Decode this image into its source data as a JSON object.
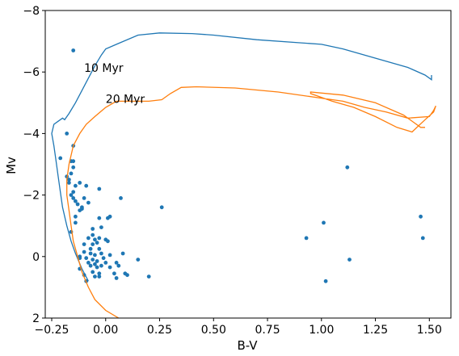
{
  "chart_data": {
    "type": "scatter",
    "title": "",
    "xlabel": "B-V",
    "ylabel": "Mv",
    "xlim": [
      -0.28,
      1.6
    ],
    "ylim": [
      2,
      -8
    ],
    "y_inverted": true,
    "grid": false,
    "xticks": [
      {
        "value": -0.25,
        "label": "−0.25"
      },
      {
        "value": 0.0,
        "label": "0.00"
      },
      {
        "value": 0.25,
        "label": "0.25"
      },
      {
        "value": 0.5,
        "label": "0.50"
      },
      {
        "value": 0.75,
        "label": "0.75"
      },
      {
        "value": 1.0,
        "label": "1.00"
      },
      {
        "value": 1.25,
        "label": "1.25"
      },
      {
        "value": 1.5,
        "label": "1.50"
      }
    ],
    "yticks": [
      {
        "value": -8,
        "label": "−8"
      },
      {
        "value": -6,
        "label": "−6"
      },
      {
        "value": -4,
        "label": "−4"
      },
      {
        "value": -2,
        "label": "−2"
      },
      {
        "value": 0,
        "label": "0"
      },
      {
        "value": 2,
        "label": "2"
      }
    ],
    "series": [
      {
        "kind": "scatter",
        "color": "#1f77b4",
        "points": [
          [
            -0.15,
            -6.7
          ],
          [
            -0.18,
            -4.0
          ],
          [
            -0.21,
            -3.2
          ],
          [
            -0.15,
            -3.6
          ],
          [
            -0.16,
            -3.1
          ],
          [
            -0.15,
            -3.1
          ],
          [
            -0.15,
            -2.9
          ],
          [
            -0.16,
            -2.7
          ],
          [
            -0.18,
            -2.6
          ],
          [
            -0.17,
            -2.5
          ],
          [
            -0.17,
            -2.4
          ],
          [
            -0.12,
            -2.4
          ],
          [
            -0.14,
            -2.3
          ],
          [
            -0.09,
            -2.3
          ],
          [
            -0.03,
            -2.2
          ],
          [
            -0.15,
            -2.1
          ],
          [
            -0.16,
            -2.0
          ],
          [
            -0.15,
            -1.9
          ],
          [
            -0.14,
            -1.8
          ],
          [
            -0.1,
            -1.9
          ],
          [
            0.07,
            -1.9
          ],
          [
            -0.08,
            -1.75
          ],
          [
            -0.13,
            -1.7
          ],
          [
            -0.11,
            -1.6
          ],
          [
            -0.11,
            -1.55
          ],
          [
            -0.12,
            -1.5
          ],
          [
            0.26,
            -1.6
          ],
          [
            -0.14,
            -1.3
          ],
          [
            0.02,
            -1.3
          ],
          [
            0.01,
            -1.25
          ],
          [
            -0.03,
            -1.25
          ],
          [
            -0.14,
            -1.1
          ],
          [
            -0.06,
            -0.9
          ],
          [
            -0.02,
            -0.95
          ],
          [
            -0.16,
            -0.8
          ],
          [
            -0.06,
            -0.7
          ],
          [
            -0.08,
            -0.6
          ],
          [
            -0.05,
            -0.55
          ],
          [
            -0.03,
            -0.6
          ],
          [
            0.0,
            -0.55
          ],
          [
            -0.04,
            -0.45
          ],
          [
            -0.06,
            -0.4
          ],
          [
            -0.1,
            -0.4
          ],
          [
            0.01,
            -0.5
          ],
          [
            -0.07,
            -0.25
          ],
          [
            -0.03,
            -0.25
          ],
          [
            -0.1,
            -0.15
          ],
          [
            -0.07,
            -0.1
          ],
          [
            -0.05,
            -0.05
          ],
          [
            -0.02,
            -0.1
          ],
          [
            0.02,
            -0.05
          ],
          [
            -0.12,
            0.0
          ],
          [
            -0.09,
            0.05
          ],
          [
            -0.06,
            0.1
          ],
          [
            -0.04,
            0.15
          ],
          [
            -0.01,
            0.05
          ],
          [
            -0.08,
            0.2
          ],
          [
            -0.05,
            0.25
          ],
          [
            0.0,
            0.2
          ],
          [
            0.05,
            0.2
          ],
          [
            -0.07,
            0.3
          ],
          [
            -0.04,
            0.35
          ],
          [
            -0.02,
            0.3
          ],
          [
            0.02,
            0.35
          ],
          [
            0.06,
            0.3
          ],
          [
            0.15,
            0.1
          ],
          [
            -0.06,
            0.5
          ],
          [
            -0.03,
            0.55
          ],
          [
            0.04,
            0.55
          ],
          [
            0.09,
            0.55
          ],
          [
            0.1,
            0.6
          ],
          [
            -0.1,
            0.6
          ],
          [
            -0.05,
            0.65
          ],
          [
            0.05,
            0.7
          ],
          [
            0.2,
            0.65
          ],
          [
            -0.09,
            0.8
          ],
          [
            -0.12,
            0.4
          ],
          [
            -0.12,
            0.05
          ],
          [
            -0.03,
            0.65
          ],
          [
            0.08,
            -0.1
          ],
          [
            1.12,
            -2.9
          ],
          [
            1.01,
            -1.1
          ],
          [
            0.93,
            -0.6
          ],
          [
            1.13,
            0.1
          ],
          [
            1.02,
            0.8
          ],
          [
            1.46,
            -1.3
          ],
          [
            1.47,
            -0.6
          ]
        ]
      },
      {
        "kind": "line",
        "name": "",
        "color": "#1f77b4",
        "points": [
          [
            -0.08,
            0.8
          ],
          [
            -0.11,
            0.4
          ],
          [
            -0.14,
            -0.1
          ],
          [
            -0.16,
            -0.5
          ],
          [
            -0.18,
            -1.0
          ],
          [
            -0.2,
            -1.6
          ],
          [
            -0.21,
            -2.1
          ],
          [
            -0.22,
            -2.6
          ],
          [
            -0.23,
            -3.1
          ],
          [
            -0.24,
            -3.6
          ],
          [
            -0.25,
            -4.0
          ],
          [
            -0.24,
            -4.3
          ],
          [
            -0.22,
            -4.4
          ],
          [
            -0.2,
            -4.5
          ],
          [
            -0.19,
            -4.45
          ],
          [
            -0.17,
            -4.65
          ],
          [
            -0.14,
            -5.0
          ],
          [
            -0.11,
            -5.4
          ],
          [
            -0.08,
            -5.8
          ],
          [
            -0.05,
            -6.2
          ],
          [
            -0.02,
            -6.55
          ],
          [
            0.0,
            -6.75
          ],
          [
            0.05,
            -6.9
          ],
          [
            0.15,
            -7.2
          ],
          [
            0.25,
            -7.27
          ],
          [
            0.4,
            -7.25
          ],
          [
            0.5,
            -7.2
          ],
          [
            0.7,
            -7.05
          ],
          [
            0.9,
            -6.95
          ],
          [
            1.0,
            -6.9
          ],
          [
            1.1,
            -6.75
          ],
          [
            1.2,
            -6.55
          ],
          [
            1.3,
            -6.35
          ],
          [
            1.4,
            -6.15
          ],
          [
            1.48,
            -5.9
          ],
          [
            1.51,
            -5.75
          ],
          [
            1.51,
            -5.9
          ]
        ]
      },
      {
        "kind": "line",
        "name": "",
        "color": "#ff7f0e",
        "points": [
          [
            0.06,
            2.0
          ],
          [
            0.0,
            1.75
          ],
          [
            -0.05,
            1.4
          ],
          [
            -0.08,
            1.0
          ],
          [
            -0.11,
            0.5
          ],
          [
            -0.13,
            0.0
          ],
          [
            -0.15,
            -0.5
          ],
          [
            -0.16,
            -1.0
          ],
          [
            -0.17,
            -1.5
          ],
          [
            -0.18,
            -2.0
          ],
          [
            -0.18,
            -2.5
          ],
          [
            -0.17,
            -3.0
          ],
          [
            -0.15,
            -3.6
          ],
          [
            -0.12,
            -4.0
          ],
          [
            -0.09,
            -4.3
          ],
          [
            -0.05,
            -4.55
          ],
          [
            0.0,
            -4.85
          ],
          [
            0.05,
            -5.05
          ],
          [
            0.2,
            -5.05
          ],
          [
            0.26,
            -5.1
          ],
          [
            0.3,
            -5.3
          ],
          [
            0.35,
            -5.5
          ],
          [
            0.42,
            -5.52
          ],
          [
            0.6,
            -5.48
          ],
          [
            0.8,
            -5.35
          ],
          [
            1.0,
            -5.15
          ],
          [
            1.1,
            -5.05
          ],
          [
            1.2,
            -4.85
          ],
          [
            1.3,
            -4.7
          ],
          [
            1.4,
            -4.5
          ],
          [
            1.5,
            -4.55
          ],
          [
            1.52,
            -4.75
          ],
          [
            1.53,
            -4.9
          ],
          [
            1.52,
            -4.7
          ],
          [
            1.48,
            -4.45
          ],
          [
            1.45,
            -4.25
          ],
          [
            1.42,
            -4.05
          ],
          [
            1.35,
            -4.2
          ],
          [
            1.25,
            -4.55
          ],
          [
            1.15,
            -4.85
          ],
          [
            1.05,
            -5.05
          ],
          [
            0.95,
            -5.3
          ],
          [
            0.95,
            -5.35
          ],
          [
            1.1,
            -5.25
          ],
          [
            1.25,
            -5.0
          ],
          [
            1.38,
            -4.6
          ],
          [
            1.46,
            -4.2
          ],
          [
            1.48,
            -4.2
          ]
        ]
      }
    ],
    "annotations": [
      {
        "text": "10 Myr",
        "x": -0.1,
        "y": -6.0
      },
      {
        "text": "20 Myr",
        "x": 0.0,
        "y": -5.0
      }
    ]
  }
}
